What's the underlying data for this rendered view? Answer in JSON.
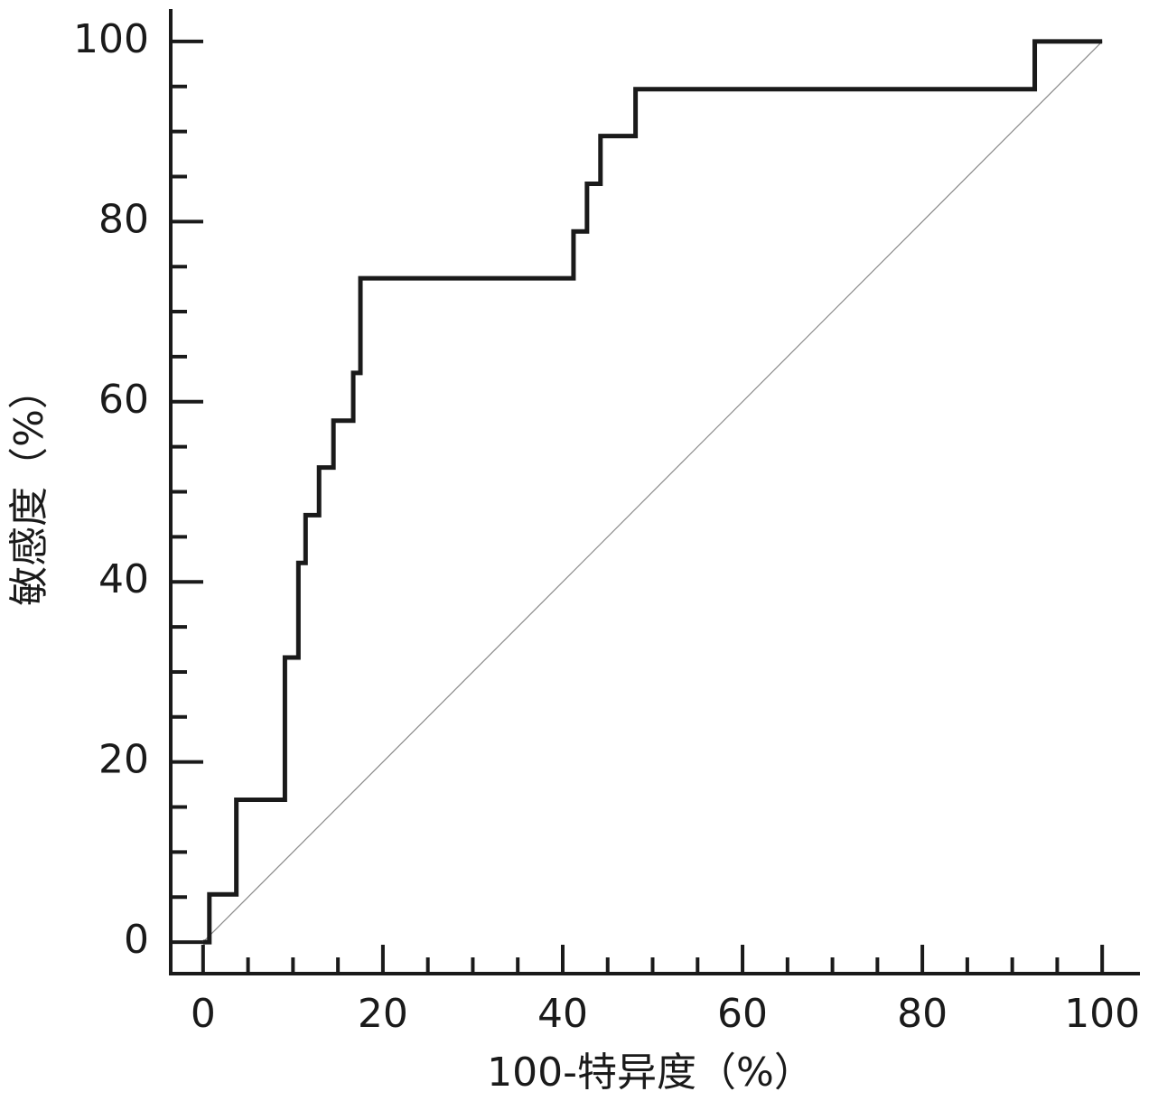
{
  "chart_data": {
    "type": "line",
    "xlabel": "100-特异度（%）",
    "ylabel": "敏感度（%）",
    "xlim": [
      -3.6,
      104.2
    ],
    "ylim": [
      -3.5,
      103.6
    ],
    "xticks": [
      0,
      20,
      40,
      60,
      80,
      100
    ],
    "yticks": [
      0,
      20,
      40,
      60,
      80,
      100
    ],
    "xminorticks": [
      5,
      10,
      15,
      25,
      30,
      35,
      45,
      50,
      55,
      65,
      70,
      75,
      85,
      90,
      95
    ],
    "yminorticks": [
      5,
      10,
      15,
      25,
      30,
      35,
      45,
      50,
      55,
      65,
      70,
      75,
      85,
      90,
      95
    ],
    "series": [
      {
        "color": "#1a1a1a",
        "width": 5,
        "x": [
          0,
          0.7,
          0.7,
          3.7,
          3.7,
          9.1,
          9.1,
          10.6,
          10.6,
          11.4,
          11.4,
          12.9,
          12.9,
          14.5,
          14.5,
          16.7,
          16.7,
          17.5,
          17.5,
          41.2,
          41.2,
          42.7,
          42.7,
          44.2,
          44.2,
          48.1,
          48.1,
          92.5,
          92.5,
          100
        ],
        "values": [
          0,
          0,
          5.3,
          5.3,
          15.8,
          15.8,
          31.6,
          31.6,
          42.1,
          42.1,
          47.4,
          47.4,
          52.7,
          52.7,
          57.9,
          57.9,
          63.2,
          63.2,
          73.7,
          73.7,
          78.9,
          78.9,
          84.2,
          84.2,
          89.5,
          89.5,
          94.7,
          94.7,
          100,
          100
        ]
      },
      {
        "color": "#8a8a8a",
        "width": 1.2,
        "x": [
          0,
          100
        ],
        "values": [
          0,
          100
        ]
      }
    ]
  }
}
